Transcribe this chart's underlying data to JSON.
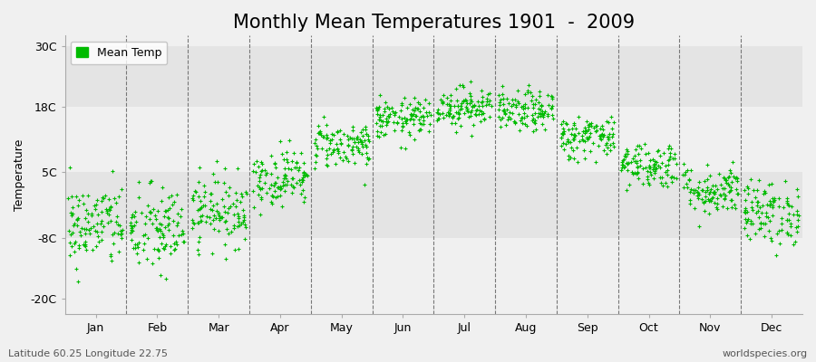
{
  "title": "Monthly Mean Temperatures 1901  -  2009",
  "ylabel": "Temperature",
  "bottom_left_label": "Latitude 60.25 Longitude 22.75",
  "bottom_right_label": "worldspecies.org",
  "legend_label": "Mean Temp",
  "dot_color": "#00BB00",
  "bg_color": "#F0F0F0",
  "band_colors": [
    "#F0F0F0",
    "#E4E4E4"
  ],
  "yticks": [
    -20,
    -8,
    5,
    18,
    30
  ],
  "ytick_labels": [
    "-20C",
    "-8C",
    "5C",
    "18C",
    "30C"
  ],
  "ylim": [
    -23,
    32
  ],
  "months": [
    "Jan",
    "Feb",
    "Mar",
    "Apr",
    "May",
    "Jun",
    "Jul",
    "Aug",
    "Sep",
    "Oct",
    "Nov",
    "Dec"
  ],
  "mean_temps": [
    -5.5,
    -6.5,
    -2.5,
    4.0,
    10.5,
    15.5,
    18.0,
    17.0,
    12.0,
    6.5,
    1.5,
    -3.0
  ],
  "std_temps": [
    4.2,
    4.5,
    3.5,
    2.8,
    2.3,
    2.0,
    2.0,
    2.0,
    2.2,
    2.3,
    2.5,
    3.2
  ],
  "n_years": 109,
  "title_fontsize": 15,
  "axis_label_fontsize": 9,
  "tick_fontsize": 9,
  "marker_size": 5
}
